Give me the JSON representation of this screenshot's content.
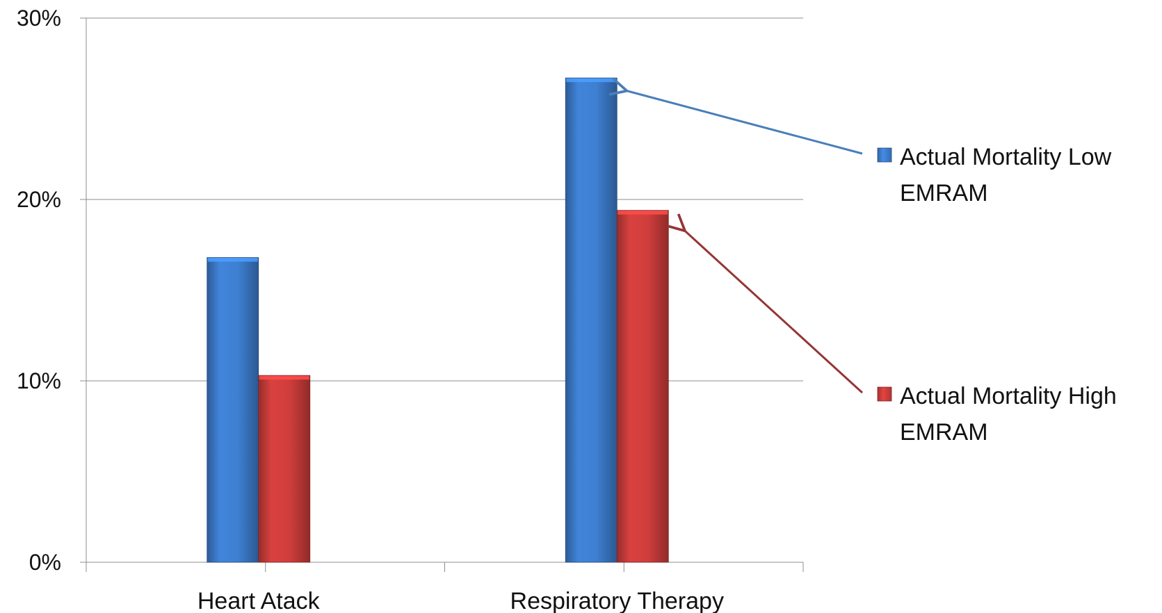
{
  "chart_data": {
    "type": "bar",
    "categories": [
      "Heart Atack",
      "Respiratory Therapy"
    ],
    "series": [
      {
        "name": "Actual Mortality Low EMRAM",
        "name_lines": [
          "Actual Mortality Low",
          "EMRAM"
        ],
        "values": [
          16.8,
          26.7
        ],
        "color": "#3e7fd1"
      },
      {
        "name": "Actual Mortality High EMRAM",
        "name_lines": [
          "Actual Mortality High",
          "EMRAM"
        ],
        "values": [
          10.3,
          19.4
        ],
        "color": "#cf3e3c"
      }
    ],
    "ylim": [
      0,
      30
    ],
    "yticks": [
      0,
      10,
      20,
      30
    ],
    "ytick_labels": [
      "0%",
      "10%",
      "20%",
      "30%"
    ],
    "grid": true,
    "legend": "right",
    "title": "",
    "xlabel": "",
    "ylabel": ""
  }
}
